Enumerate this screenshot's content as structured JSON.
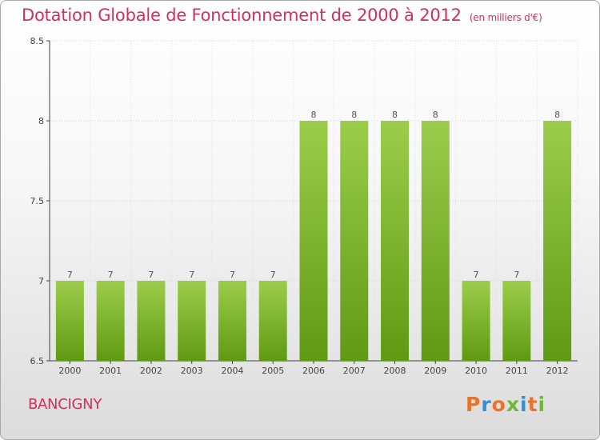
{
  "title": "Dotation Globale de Fonctionnement de 2000 à 2012",
  "unit": "(en milliers d'€)",
  "commune": "BANCIGNY",
  "logo": {
    "text": "Proxiti",
    "letter_colors": [
      "#e8742a",
      "#3a8ed2",
      "#e8742a",
      "#6fb83a",
      "#3a8ed2",
      "#e8742a",
      "#6fb83a"
    ]
  },
  "colors": {
    "title": "#d62e5a",
    "bar_light": "#9ccd4a",
    "bar_dark": "#5f9a12"
  },
  "chart_data": {
    "type": "bar",
    "categories": [
      "2000",
      "2001",
      "2002",
      "2003",
      "2004",
      "2005",
      "2006",
      "2007",
      "2008",
      "2009",
      "2010",
      "2011",
      "2012"
    ],
    "values": [
      7,
      7,
      7,
      7,
      7,
      7,
      8,
      8,
      8,
      8,
      7,
      7,
      8
    ],
    "data_labels": [
      "7",
      "7",
      "7",
      "7",
      "7",
      "7",
      "8",
      "8",
      "8",
      "8",
      "7",
      "7",
      "8"
    ],
    "ylim": [
      6.5,
      8.5
    ],
    "yticks": [
      6.5,
      7,
      7.5,
      8,
      8.5
    ],
    "ytick_labels": [
      "6.5",
      "7",
      "7.5",
      "8",
      "8.5"
    ],
    "xlabel": "",
    "ylabel": "",
    "grid": true
  }
}
